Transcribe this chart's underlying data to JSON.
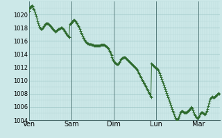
{
  "title": "",
  "background_color": "#cce8e8",
  "plot_bg_color": "#cce8e8",
  "line_color": "#2d6a2d",
  "marker_color": "#2d6a2d",
  "ylim": [
    1004,
    1022
  ],
  "yticks": [
    1004,
    1006,
    1008,
    1010,
    1012,
    1014,
    1016,
    1018,
    1020
  ],
  "ylabel_fontsize": 6,
  "xlabel_fontsize": 7,
  "grid_minor_color": "#b8d8d8",
  "grid_major_color": "#99c4c4",
  "day_labels": [
    "Ven",
    "Sam",
    "Dim",
    "Lun",
    "Mar",
    ""
  ],
  "day_positions": [
    0,
    60,
    120,
    180,
    240,
    270
  ],
  "total_points": 270,
  "pressure_data": [
    1020.5,
    1021.0,
    1021.2,
    1021.3,
    1021.4,
    1021.3,
    1021.1,
    1020.9,
    1020.7,
    1020.4,
    1020.1,
    1019.8,
    1019.4,
    1019.0,
    1018.6,
    1018.3,
    1018.1,
    1017.9,
    1017.8,
    1017.8,
    1017.9,
    1018.0,
    1018.2,
    1018.3,
    1018.5,
    1018.6,
    1018.7,
    1018.7,
    1018.6,
    1018.5,
    1018.4,
    1018.3,
    1018.2,
    1018.1,
    1017.9,
    1017.8,
    1017.7,
    1017.6,
    1017.5,
    1017.4,
    1017.5,
    1017.6,
    1017.7,
    1017.8,
    1017.8,
    1017.9,
    1017.9,
    1018.0,
    1018.0,
    1017.9,
    1017.8,
    1017.7,
    1017.5,
    1017.4,
    1017.2,
    1017.0,
    1016.9,
    1016.8,
    1016.7,
    1016.6,
    1018.5,
    1018.7,
    1018.8,
    1018.9,
    1019.0,
    1019.1,
    1019.2,
    1019.2,
    1019.1,
    1019.0,
    1018.8,
    1018.6,
    1018.4,
    1018.2,
    1018.0,
    1017.8,
    1017.5,
    1017.2,
    1017.0,
    1016.8,
    1016.5,
    1016.3,
    1016.1,
    1015.9,
    1015.8,
    1015.7,
    1015.6,
    1015.6,
    1015.5,
    1015.5,
    1015.5,
    1015.5,
    1015.4,
    1015.4,
    1015.4,
    1015.3,
    1015.3,
    1015.3,
    1015.3,
    1015.3,
    1015.3,
    1015.3,
    1015.3,
    1015.3,
    1015.3,
    1015.4,
    1015.4,
    1015.4,
    1015.4,
    1015.4,
    1015.4,
    1015.3,
    1015.3,
    1015.2,
    1015.1,
    1015.0,
    1014.9,
    1014.7,
    1014.5,
    1014.3,
    1014.0,
    1013.8,
    1013.5,
    1013.3,
    1013.1,
    1012.9,
    1012.8,
    1012.7,
    1012.6,
    1012.5,
    1012.5,
    1012.5,
    1012.6,
    1012.8,
    1013.0,
    1013.2,
    1013.3,
    1013.4,
    1013.4,
    1013.5,
    1013.5,
    1013.5,
    1013.4,
    1013.3,
    1013.2,
    1013.1,
    1013.0,
    1012.9,
    1012.8,
    1012.7,
    1012.6,
    1012.5,
    1012.4,
    1012.3,
    1012.2,
    1012.1,
    1012.0,
    1011.9,
    1011.7,
    1011.5,
    1011.3,
    1011.1,
    1010.9,
    1010.7,
    1010.5,
    1010.3,
    1010.1,
    1009.9,
    1009.7,
    1009.5,
    1009.3,
    1009.1,
    1008.9,
    1008.7,
    1008.5,
    1008.3,
    1008.1,
    1007.9,
    1007.7,
    1007.5,
    1012.6,
    1012.5,
    1012.4,
    1012.3,
    1012.2,
    1012.1,
    1012.0,
    1011.9,
    1011.8,
    1011.7,
    1011.5,
    1011.3,
    1011.1,
    1010.8,
    1010.5,
    1010.2,
    1009.9,
    1009.6,
    1009.3,
    1009.0,
    1008.7,
    1008.4,
    1008.1,
    1007.8,
    1007.5,
    1007.2,
    1006.9,
    1006.6,
    1006.3,
    1006.0,
    1005.7,
    1005.4,
    1005.1,
    1004.8,
    1004.5,
    1004.3,
    1004.1,
    1004.0,
    1004.1,
    1004.3,
    1004.5,
    1004.8,
    1005.1,
    1005.3,
    1005.4,
    1005.4,
    1005.3,
    1005.2,
    1005.1,
    1005.1,
    1005.1,
    1005.2,
    1005.3,
    1005.4,
    1005.5,
    1005.6,
    1005.7,
    1005.8,
    1005.9,
    1006.0,
    1005.8,
    1005.5,
    1005.2,
    1004.9,
    1004.7,
    1004.5,
    1004.4,
    1004.3,
    1004.3,
    1004.4,
    1004.6,
    1004.8,
    1005.0,
    1005.2,
    1005.2,
    1005.1,
    1005.0,
    1004.9,
    1004.8,
    1004.9,
    1005.1,
    1005.4,
    1005.7,
    1006.1,
    1006.5,
    1006.9,
    1007.2,
    1007.4,
    1007.5,
    1007.6,
    1007.5,
    1007.5,
    1007.5,
    1007.6,
    1007.7,
    1007.8,
    1007.9,
    1008.0,
    1008.1,
    1008.0
  ]
}
